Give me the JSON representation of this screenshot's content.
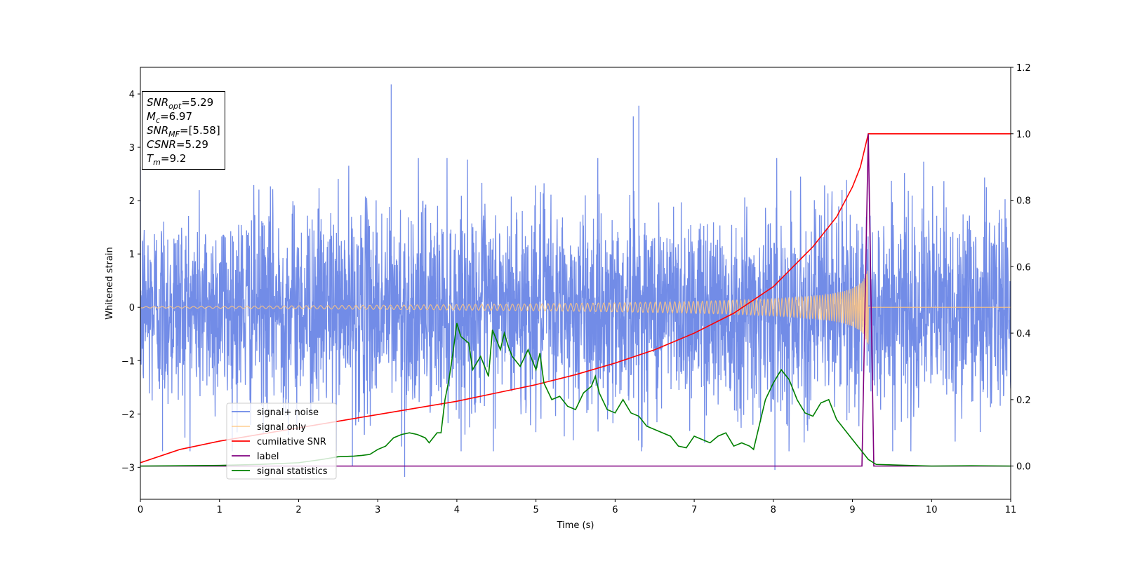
{
  "chart_data": {
    "type": "line",
    "xlabel": "Time (s)",
    "ylabel": "Whitened strain",
    "xlim": [
      0,
      11
    ],
    "ylim": [
      -3.6,
      4.5
    ],
    "y2lim": [
      -0.1,
      1.2
    ],
    "x_ticks": [
      "0",
      "1",
      "2",
      "3",
      "4",
      "5",
      "6",
      "7",
      "8",
      "9",
      "10",
      "11"
    ],
    "y_ticks": [
      "4",
      "3",
      "2",
      "1",
      "0",
      "−1",
      "−2",
      "−3"
    ],
    "y_tick_values": [
      4,
      3,
      2,
      1,
      0,
      -1,
      -2,
      -3
    ],
    "y2_ticks": [
      "1.2",
      "1.0",
      "0.8",
      "0.6",
      "0.4",
      "0.2",
      "0.0"
    ],
    "y2_tick_values": [
      1.2,
      1.0,
      0.8,
      0.6,
      0.4,
      0.2,
      0.0
    ],
    "grid": false,
    "legend_position": "lower-left",
    "series": [
      {
        "name": "signal+ noise",
        "axis": "left",
        "color": "#6a86e6",
        "pattern": "random noise, approx. ±2.5 with spikes to 4.2",
        "spikes": [
          [
            3.17,
            4.18
          ],
          [
            6.3,
            3.78
          ],
          [
            6.23,
            3.58
          ],
          [
            3.34,
            -3.18
          ],
          [
            8.02,
            -3.05
          ],
          [
            2.68,
            -2.98
          ],
          [
            0.28,
            -2.7
          ]
        ]
      },
      {
        "name": "signal only",
        "axis": "left",
        "color": "#ffc680",
        "pattern": "chirp, amplitude growing from ~0.01 to ~0.3 until 9.2 s, then 0"
      },
      {
        "name": "cumilative SNR",
        "axis": "right",
        "color": "#ff0000",
        "x": [
          0,
          0.5,
          1,
          1.5,
          2,
          2.5,
          3,
          3.5,
          4,
          4.5,
          5,
          5.5,
          6,
          6.5,
          7,
          7.5,
          8,
          8.5,
          8.8,
          9.0,
          9.1,
          9.18,
          9.2,
          11
        ],
        "y": [
          0.01,
          0.05,
          0.075,
          0.095,
          0.115,
          0.135,
          0.155,
          0.175,
          0.195,
          0.22,
          0.245,
          0.275,
          0.31,
          0.35,
          0.4,
          0.46,
          0.54,
          0.66,
          0.75,
          0.84,
          0.9,
          0.98,
          1.0,
          1.0
        ]
      },
      {
        "name": "label",
        "axis": "right",
        "color": "#800080",
        "x": [
          0,
          9.12,
          9.2,
          9.27,
          11
        ],
        "y": [
          0,
          0,
          1.0,
          0,
          0
        ]
      },
      {
        "name": "signal statistics",
        "axis": "right",
        "color": "#008000",
        "x": [
          0,
          1,
          1.5,
          2,
          2.3,
          2.5,
          2.7,
          2.8,
          2.9,
          3.0,
          3.1,
          3.2,
          3.3,
          3.4,
          3.5,
          3.6,
          3.65,
          3.75,
          3.8,
          3.85,
          3.9,
          3.95,
          4.0,
          4.05,
          4.15,
          4.2,
          4.3,
          4.4,
          4.45,
          4.55,
          4.6,
          4.65,
          4.7,
          4.8,
          4.9,
          5.0,
          5.05,
          5.1,
          5.2,
          5.3,
          5.4,
          5.5,
          5.6,
          5.7,
          5.75,
          5.8,
          5.9,
          6.0,
          6.1,
          6.2,
          6.3,
          6.4,
          6.5,
          6.6,
          6.7,
          6.8,
          6.9,
          7.0,
          7.1,
          7.2,
          7.3,
          7.4,
          7.5,
          7.6,
          7.7,
          7.75,
          7.8,
          7.9,
          8.0,
          8.1,
          8.2,
          8.3,
          8.4,
          8.5,
          8.6,
          8.7,
          8.8,
          8.9,
          9.0,
          9.1,
          9.2,
          9.3,
          10,
          10.5,
          11
        ],
        "y": [
          0,
          0.002,
          0.005,
          0.01,
          0.02,
          0.028,
          0.03,
          0.032,
          0.035,
          0.05,
          0.06,
          0.085,
          0.095,
          0.1,
          0.095,
          0.085,
          0.07,
          0.1,
          0.1,
          0.2,
          0.26,
          0.34,
          0.43,
          0.39,
          0.37,
          0.29,
          0.33,
          0.27,
          0.41,
          0.35,
          0.4,
          0.36,
          0.33,
          0.3,
          0.35,
          0.29,
          0.34,
          0.25,
          0.2,
          0.21,
          0.18,
          0.17,
          0.22,
          0.24,
          0.27,
          0.22,
          0.17,
          0.16,
          0.2,
          0.16,
          0.15,
          0.12,
          0.11,
          0.1,
          0.09,
          0.06,
          0.055,
          0.09,
          0.08,
          0.07,
          0.09,
          0.1,
          0.06,
          0.07,
          0.06,
          0.05,
          0.1,
          0.2,
          0.25,
          0.29,
          0.26,
          0.2,
          0.16,
          0.15,
          0.19,
          0.2,
          0.14,
          0.11,
          0.08,
          0.05,
          0.02,
          0.005,
          0,
          0.001,
          0
        ]
      }
    ],
    "annotation": {
      "lines": [
        {
          "sym": "SNR",
          "sub": "opt",
          "value": "=5.29"
        },
        {
          "sym": "M",
          "sub": "c",
          "value": "=6.97"
        },
        {
          "sym": "SNR",
          "sub": "MF",
          "value": "=[5.58]"
        },
        {
          "sym": "CSNR",
          "sub": "",
          "value": "=5.29"
        },
        {
          "sym": "T",
          "sub": "m",
          "value": "=9.2"
        }
      ]
    }
  }
}
